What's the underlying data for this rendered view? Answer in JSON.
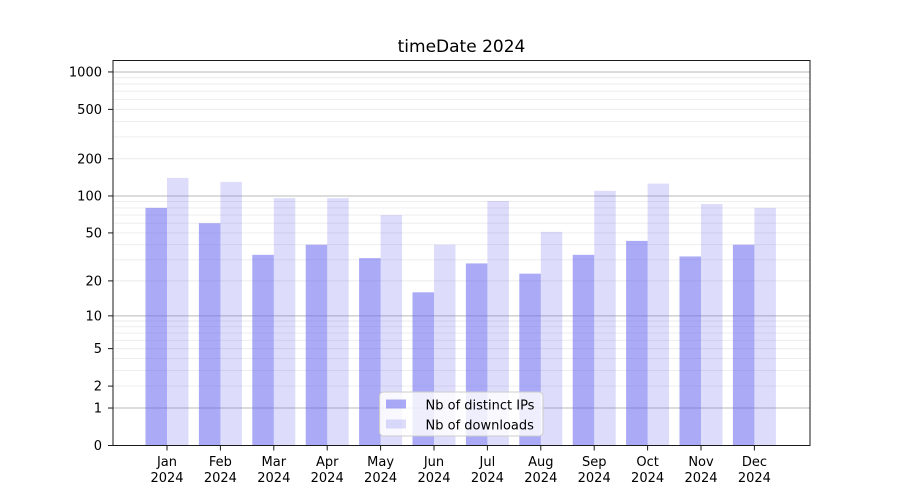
{
  "chart_data": {
    "type": "bar",
    "title": "timeDate 2024",
    "categories": [
      "Jan",
      "Feb",
      "Mar",
      "Apr",
      "May",
      "Jun",
      "Jul",
      "Aug",
      "Sep",
      "Oct",
      "Nov",
      "Dec"
    ],
    "category_year": "2024",
    "series": [
      {
        "name": "Nb of distinct IPs",
        "color": "#6464ee",
        "alpha": 0.55,
        "values": [
          80,
          60,
          33,
          40,
          31,
          16,
          28,
          23,
          33,
          43,
          32,
          40
        ]
      },
      {
        "name": "Nb of downloads",
        "color": "#6464ee",
        "alpha": 0.22,
        "values": [
          140,
          130,
          96,
          96,
          70,
          40,
          91,
          51,
          110,
          126,
          86,
          80
        ]
      }
    ],
    "y_axis": {
      "scale": "log10(1+x)",
      "tick_values": [
        0,
        1,
        2,
        5,
        10,
        20,
        50,
        100,
        200,
        500,
        1000
      ],
      "tick_labels": [
        "0",
        "1",
        "2",
        "5",
        "10",
        "20",
        "50",
        "100",
        "200",
        "500",
        "1000"
      ],
      "major_gridlines": [
        1,
        10,
        100,
        1000
      ],
      "minor_gridlines": [
        2,
        3,
        4,
        5,
        6,
        7,
        8,
        9,
        20,
        30,
        40,
        50,
        60,
        70,
        80,
        90,
        200,
        300,
        400,
        500,
        600,
        700,
        800,
        900
      ],
      "top_value": 1250
    },
    "xlabel": "",
    "ylabel": "",
    "grid": true,
    "legend": {
      "position": "lower center"
    }
  },
  "colors": {
    "axis": "#1a1a1a",
    "text": "#000000",
    "grid_major": "#b9b9b9",
    "grid_minor": "#ebebeb",
    "legend_border": "#cccccc",
    "legend_background": "#ffffff",
    "legend_background_alpha": 0.8,
    "figure_background": "#ffffff"
  }
}
